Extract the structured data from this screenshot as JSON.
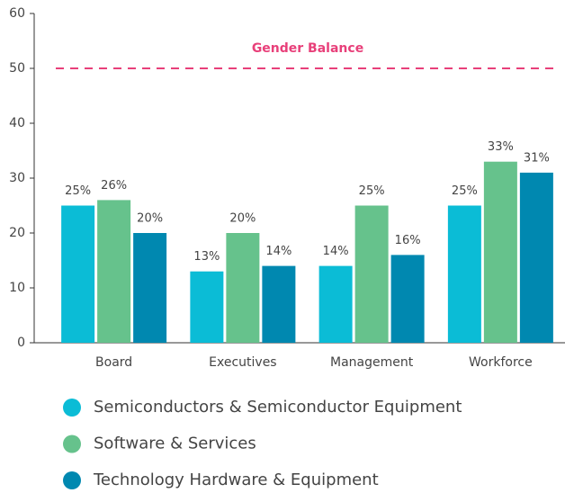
{
  "chart_data": {
    "type": "bar",
    "categories": [
      "Board",
      "Executives",
      "Management",
      "Workforce"
    ],
    "series": [
      {
        "name": "Semiconductors & Semiconductor Equipment",
        "color": "#0bbcd6",
        "values": [
          25,
          13,
          14,
          25
        ],
        "value_labels": [
          "25%",
          "13%",
          "14%",
          "25%"
        ]
      },
      {
        "name": "Software & Services",
        "color": "#66c28c",
        "values": [
          26,
          20,
          25,
          33
        ],
        "value_labels": [
          "26%",
          "20%",
          "25%",
          "33%"
        ]
      },
      {
        "name": "Technology Hardware & Equipment",
        "color": "#0088b0",
        "values": [
          20,
          14,
          16,
          31
        ],
        "value_labels": [
          "20%",
          "14%",
          "16%",
          "31%"
        ]
      }
    ],
    "ylim": [
      0,
      60
    ],
    "yticks": [
      0,
      10,
      20,
      30,
      40,
      50,
      60
    ],
    "reference_line": {
      "value": 50,
      "label": "Gender Balance",
      "color": "#e8407a"
    }
  }
}
